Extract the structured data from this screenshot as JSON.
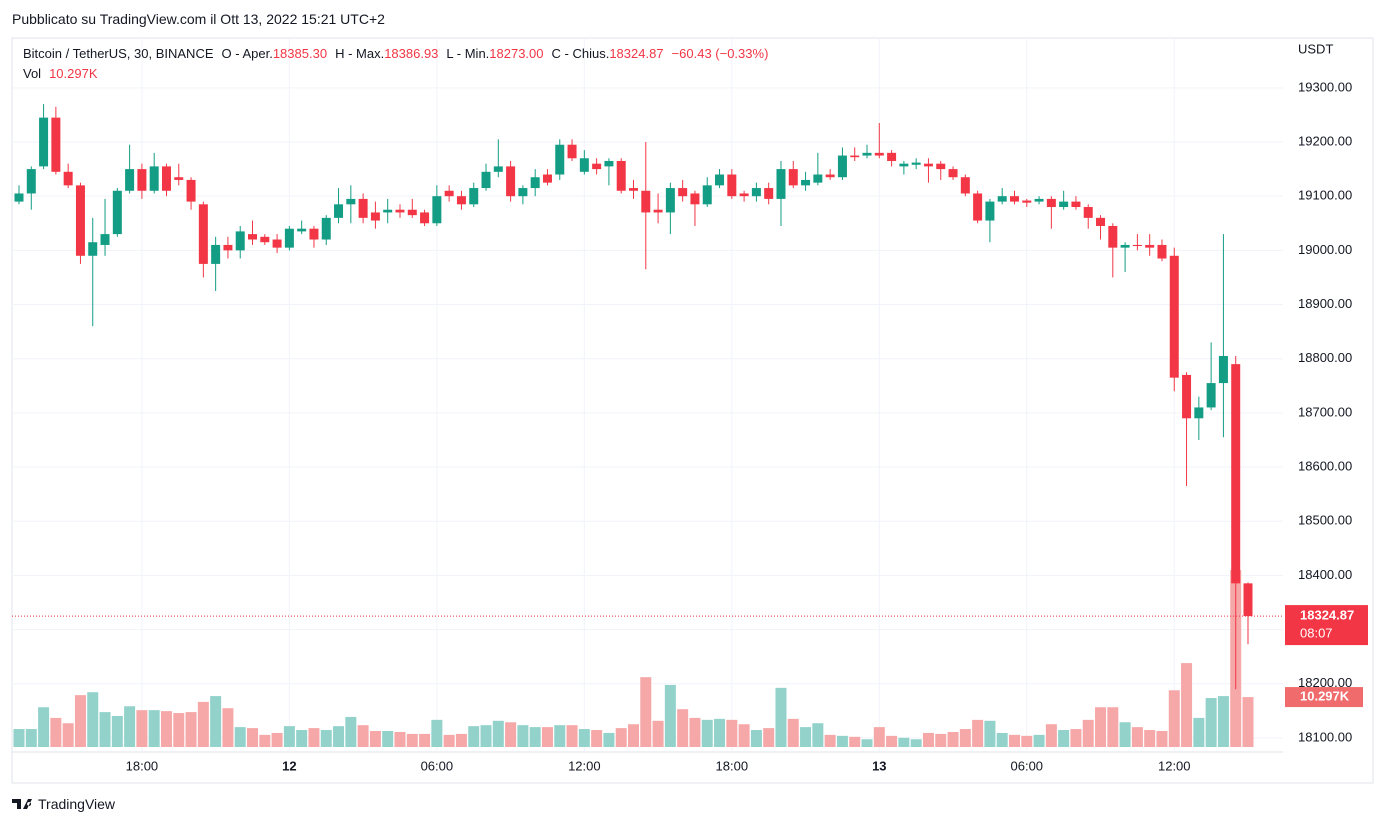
{
  "header": {
    "published": "Pubblicato su TradingView.com il Ott 13, 2022 15:21 UTC+2",
    "brand": "TradingView"
  },
  "legend": {
    "symbol": "Bitcoin / TetherUS, 30, BINANCE",
    "open_label": "O - Aper.",
    "open": "18385.30",
    "high_label": "H - Max.",
    "high": "18386.93",
    "low_label": "L - Min.",
    "low": "18273.00",
    "close_label": "C - Chius.",
    "close": "18324.87",
    "change": "−60.43 (−0.33%)",
    "volume_label": "Vol",
    "volume": "10.297K",
    "countdown": "08:07"
  },
  "chart_data": {
    "type": "candlestick",
    "yaxis_label": "USDT",
    "up_color": "#129d84",
    "down_color": "#f23645",
    "volume_up_color": "#92d2cb",
    "volume_down_color": "#f6a8a8",
    "grid": true,
    "ylim": [
      18074,
      19392
    ],
    "yticks": [
      {
        "value": 18100,
        "label": "18100.00"
      },
      {
        "value": 18200,
        "label": "18200.00"
      },
      {
        "value": 18300,
        "label": "18300.00"
      },
      {
        "value": 18400,
        "label": "18400.00"
      },
      {
        "value": 18500,
        "label": "18500.00"
      },
      {
        "value": 18600,
        "label": "18600.00"
      },
      {
        "value": 18700,
        "label": "18700.00"
      },
      {
        "value": 18800,
        "label": "18800.00"
      },
      {
        "value": 18900,
        "label": "18900.00"
      },
      {
        "value": 19000,
        "label": "19000.00"
      },
      {
        "value": 19100,
        "label": "19100.00"
      },
      {
        "value": 19200,
        "label": "19200.00"
      },
      {
        "value": 19300,
        "label": "19300.00"
      }
    ],
    "categories": [
      null,
      null,
      null,
      null,
      null,
      null,
      null,
      null,
      null,
      null,
      "18:00",
      null,
      null,
      null,
      null,
      null,
      null,
      null,
      null,
      null,
      null,
      null,
      "12",
      null,
      null,
      null,
      null,
      null,
      null,
      null,
      null,
      null,
      null,
      null,
      "06:00",
      null,
      null,
      null,
      null,
      null,
      null,
      null,
      null,
      null,
      null,
      null,
      "12:00",
      null,
      null,
      null,
      null,
      null,
      null,
      null,
      null,
      null,
      null,
      null,
      "18:00",
      null,
      null,
      null,
      null,
      null,
      null,
      null,
      null,
      null,
      null,
      null,
      "13",
      null,
      null,
      null,
      null,
      null,
      null,
      null,
      null,
      null,
      null,
      null,
      "06:00",
      null,
      null,
      null,
      null,
      null,
      null,
      null,
      null,
      null,
      null,
      null,
      "12:00",
      null,
      null,
      null,
      null,
      null,
      null
    ],
    "open": [
      19090,
      19105,
      19155,
      19245,
      19145,
      19120,
      18990,
      19010,
      19030,
      19110,
      19150,
      19110,
      19155,
      19135,
      19130,
      19085,
      18975,
      19010,
      19000,
      19030,
      19025,
      19020,
      19005,
      19035,
      19040,
      19020,
      19060,
      19085,
      19095,
      19070,
      19070,
      19075,
      19075,
      19070,
      19050,
      19110,
      19100,
      19085,
      19115,
      19145,
      19155,
      19100,
      19115,
      19140,
      19140,
      19195,
      19145,
      19160,
      19155,
      19165,
      19115,
      19110,
      19075,
      19070,
      19115,
      19105,
      19085,
      19120,
      19140,
      19105,
      19100,
      19115,
      19095,
      19150,
      19120,
      19125,
      19140,
      19135,
      19175,
      19175,
      19180,
      19180,
      19155,
      19158,
      19160,
      19160,
      19150,
      19135,
      19105,
      19055,
      19090,
      19100,
      19092,
      19090,
      19095,
      19080,
      19090,
      19080,
      19060,
      19045,
      19005,
      19010,
      19010,
      19010,
      18990,
      18770,
      18690,
      18710,
      18755,
      18790,
      18385.3
    ],
    "high": [
      19120,
      19155,
      19270,
      19265,
      19160,
      19125,
      19060,
      19095,
      19115,
      19195,
      19160,
      19180,
      19160,
      19160,
      19135,
      19090,
      19025,
      19025,
      19045,
      19055,
      19030,
      19030,
      19045,
      19055,
      19045,
      19065,
      19115,
      19120,
      19105,
      19090,
      19095,
      19085,
      19095,
      19075,
      19120,
      19120,
      19110,
      19125,
      19160,
      19205,
      19165,
      19120,
      19150,
      19150,
      19205,
      19205,
      19185,
      19170,
      19170,
      19170,
      19130,
      19200,
      19105,
      19125,
      19130,
      19110,
      19135,
      19150,
      19150,
      19110,
      19125,
      19125,
      19165,
      19165,
      19145,
      19180,
      19150,
      19190,
      19190,
      19195,
      19235,
      19185,
      19165,
      19170,
      19170,
      19165,
      19155,
      19140,
      19110,
      19095,
      19115,
      19110,
      19095,
      19100,
      19100,
      19110,
      19100,
      19085,
      19065,
      19050,
      19015,
      19030,
      19030,
      19020,
      19005,
      18775,
      18730,
      18830,
      19030,
      18805,
      18386.93
    ],
    "low": [
      19085,
      19075,
      19150,
      19140,
      19115,
      18975,
      18860,
      18990,
      19025,
      19105,
      19095,
      19105,
      19100,
      19120,
      19075,
      18950,
      18925,
      18985,
      18985,
      19010,
      19010,
      18995,
      19000,
      19030,
      19005,
      19010,
      19050,
      19050,
      19050,
      19040,
      19050,
      19060,
      19060,
      19045,
      19045,
      19090,
      19075,
      19080,
      19110,
      19135,
      19090,
      19085,
      19100,
      19120,
      19130,
      19165,
      19140,
      19140,
      19120,
      19105,
      19095,
      18965,
      19050,
      19030,
      19090,
      19045,
      19080,
      19115,
      19095,
      19090,
      19090,
      19085,
      19045,
      19115,
      19110,
      19120,
      19130,
      19130,
      19165,
      19170,
      19170,
      19155,
      19140,
      19150,
      19125,
      19130,
      19130,
      19100,
      19050,
      19015,
      19085,
      19085,
      19080,
      19085,
      19040,
      19075,
      19075,
      19040,
      19020,
      18950,
      18960,
      19000,
      18990,
      18980,
      18740,
      18565,
      18650,
      18705,
      18655,
      18190,
      18273
    ],
    "close": [
      19105,
      19150,
      19245,
      19145,
      19120,
      18990,
      19015,
      19030,
      19110,
      19150,
      19110,
      19155,
      19110,
      19130,
      19090,
      18975,
      19010,
      19000,
      19035,
      19020,
      19015,
      19005,
      19040,
      19040,
      19020,
      19060,
      19085,
      19095,
      19060,
      19055,
      19075,
      19070,
      19065,
      19050,
      19100,
      19100,
      19085,
      19115,
      19145,
      19155,
      19100,
      19115,
      19135,
      19125,
      19195,
      19170,
      19170,
      19150,
      19165,
      19110,
      19110,
      19070,
      19070,
      19115,
      19100,
      19085,
      19120,
      19140,
      19100,
      19100,
      19115,
      19095,
      19150,
      19120,
      19130,
      19140,
      19135,
      19175,
      19172,
      19180,
      19175,
      19165,
      19160,
      19162,
      19155,
      19150,
      19135,
      19105,
      19055,
      19090,
      19100,
      19090,
      19088,
      19095,
      19080,
      19090,
      19080,
      19060,
      19045,
      19005,
      19010,
      19008,
      19005,
      18985,
      18765,
      18690,
      18710,
      18755,
      18805,
      18385.3,
      18324.87
    ],
    "volume": [
      3700,
      3700,
      8200,
      6000,
      4900,
      10700,
      11300,
      7200,
      6400,
      8400,
      7600,
      7600,
      7400,
      7000,
      7200,
      9300,
      10500,
      8000,
      4100,
      3900,
      2500,
      2900,
      4300,
      3500,
      3900,
      3500,
      4300,
      6200,
      4500,
      3300,
      3300,
      3100,
      2700,
      2700,
      5600,
      2500,
      2700,
      4300,
      4500,
      5400,
      5100,
      4500,
      4100,
      4100,
      4500,
      4500,
      3700,
      3500,
      2900,
      3900,
      4700,
      14400,
      5400,
      12800,
      7800,
      6000,
      5600,
      5800,
      5600,
      4700,
      3500,
      3900,
      12200,
      5800,
      4100,
      4900,
      2500,
      2300,
      2100,
      1600,
      4100,
      2300,
      1900,
      1600,
      2900,
      2700,
      3100,
      3700,
      5600,
      5400,
      2900,
      2500,
      2300,
      2500,
      4700,
      3500,
      3700,
      5600,
      8200,
      8200,
      5100,
      4100,
      3500,
      3300,
      11700,
      17300,
      6000,
      10100,
      10500,
      36500,
      10297
    ]
  }
}
